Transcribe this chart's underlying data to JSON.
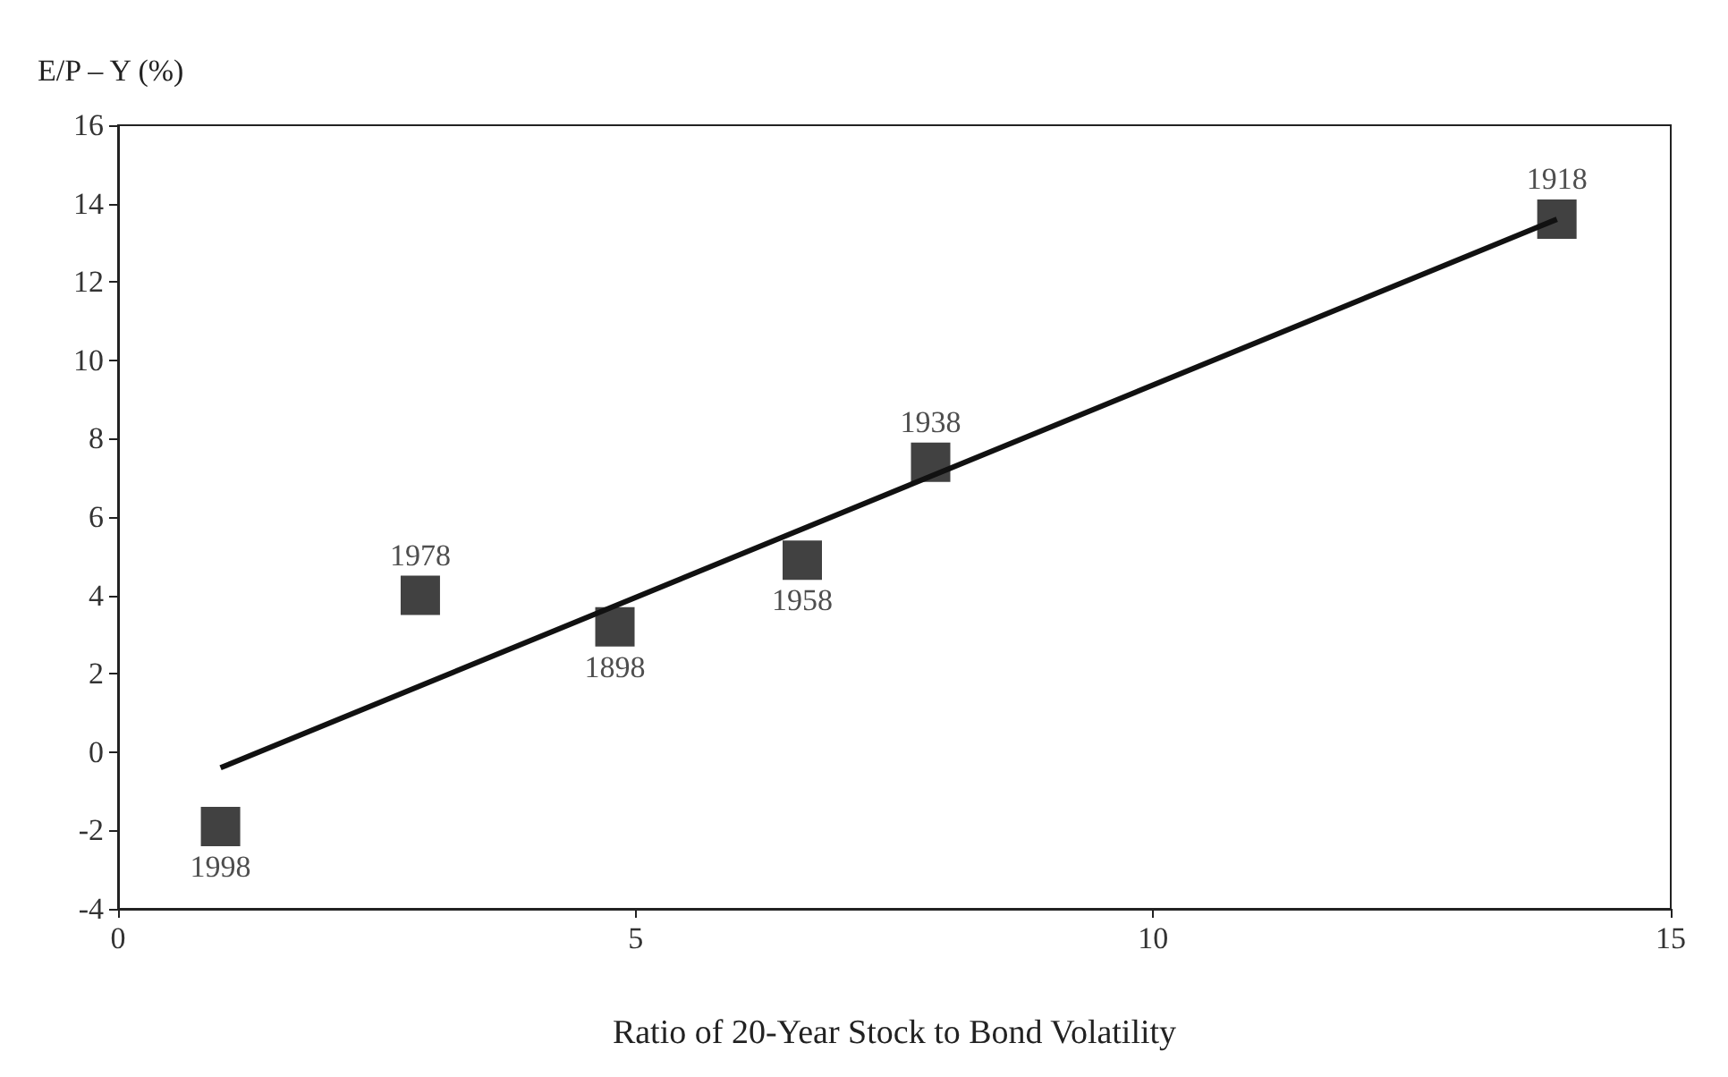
{
  "chart_data": {
    "type": "scatter",
    "xlabel": "Ratio of 20-Year Stock to Bond Volatility",
    "ylabel": "E/P – Y (%)",
    "xlim": [
      0,
      15
    ],
    "xticks": [
      0,
      5,
      10,
      15
    ],
    "ylim": [
      -4,
      16
    ],
    "yticks": [
      -4,
      -2,
      0,
      2,
      4,
      6,
      8,
      10,
      12,
      14,
      16
    ],
    "grid": false,
    "marker": "square",
    "series": [
      {
        "color": "#111111",
        "x": [
          0.99,
          2.92,
          4.8,
          6.61,
          7.85,
          13.9
        ],
        "values": [
          -1.9,
          4.0,
          3.2,
          4.9,
          7.4,
          13.6
        ]
      },
      {
        "type": "line",
        "color": "#111111",
        "x": [
          0.99,
          13.9
        ],
        "values": [
          -0.4,
          13.6
        ],
        "marker": "none"
      }
    ],
    "annotations": [
      {
        "text": "1998",
        "x": 0.99,
        "y": -1.9
      },
      {
        "text": "1978",
        "x": 2.92,
        "y": 4.0
      },
      {
        "text": "1898",
        "x": 4.8,
        "y": 3.2
      },
      {
        "text": "1958",
        "x": 6.61,
        "y": 4.9
      },
      {
        "text": "1938",
        "x": 7.85,
        "y": 7.4
      },
      {
        "text": "1918",
        "x": 13.9,
        "y": 13.6
      }
    ]
  }
}
